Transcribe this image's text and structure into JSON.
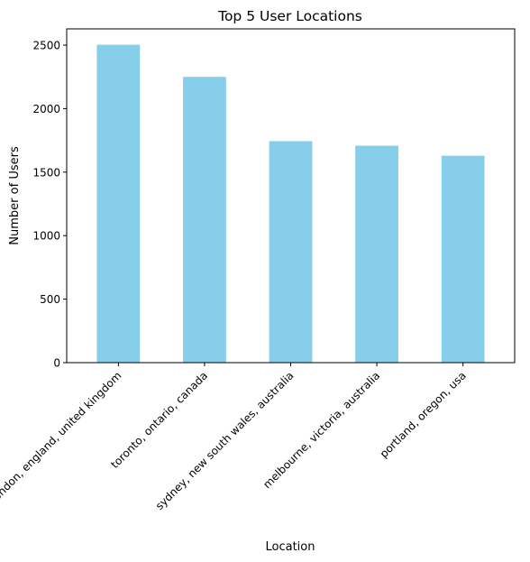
{
  "chart_data": {
    "type": "bar",
    "title": "Top 5 User Locations",
    "xlabel": "Location",
    "ylabel": "Number of Users",
    "categories": [
      "london, england, united kingdom",
      "toronto, ontario, canada",
      "sydney, new south wales, australia",
      "melbourne, victoria, australia",
      "portland, oregon, usa"
    ],
    "values": [
      2503,
      2250,
      1744,
      1708,
      1629
    ],
    "ylim": [
      0,
      2628
    ],
    "yticks": [
      0,
      500,
      1000,
      1500,
      2000,
      2500
    ],
    "bar_color": "#87CEEB",
    "grid": false,
    "legend": "none"
  }
}
